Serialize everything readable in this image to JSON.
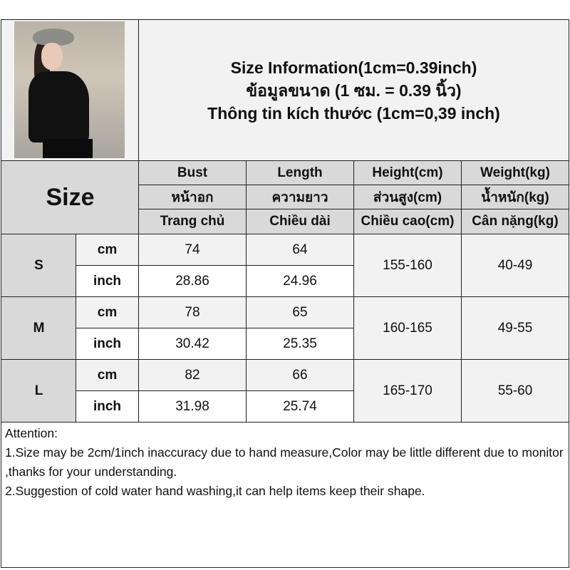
{
  "header": {
    "lines": [
      "Size Information(1cm=0.39inch)",
      "ข้อมูลขนาด (1 ซม. = 0.39 นิ้ว)",
      "Thông tin kích thước (1cm=0,39 inch)"
    ]
  },
  "table": {
    "size_label": "Size",
    "columns": [
      [
        "Bust",
        "หน้าอก",
        "Trang chủ"
      ],
      [
        "Length",
        "ความยาว",
        "Chiều dài"
      ],
      [
        "Height(cm)",
        "ส่วนสูง(cm)",
        "Chiều cao(cm)"
      ],
      [
        "Weight(kg)",
        "น้ำหนัก(kg)",
        "Cân nặng(kg)"
      ]
    ],
    "rows": [
      {
        "size": "S",
        "cm_label": "cm",
        "inch_label": "inch",
        "bust_cm": "74",
        "length_cm": "64",
        "bust_inch": "28.86",
        "length_inch": "24.96",
        "height": "155-160",
        "weight": "40-49"
      },
      {
        "size": "M",
        "cm_label": "cm",
        "inch_label": "inch",
        "bust_cm": "78",
        "length_cm": "65",
        "bust_inch": "30.42",
        "length_inch": "25.35",
        "height": "160-165",
        "weight": "49-55"
      },
      {
        "size": "L",
        "cm_label": "cm",
        "inch_label": "inch",
        "bust_cm": "82",
        "length_cm": "66",
        "bust_inch": "31.98",
        "length_inch": "25.74",
        "height": "165-170",
        "weight": "55-60"
      }
    ]
  },
  "attention": {
    "title": "Attention:",
    "lines": [
      "1.Size may be 2cm/1inch inaccuracy due to hand measure,Color may be little different due to monitor ,thanks for your understanding.",
      "2.Suggestion of cold water hand washing,it can help items keep their shape."
    ]
  }
}
